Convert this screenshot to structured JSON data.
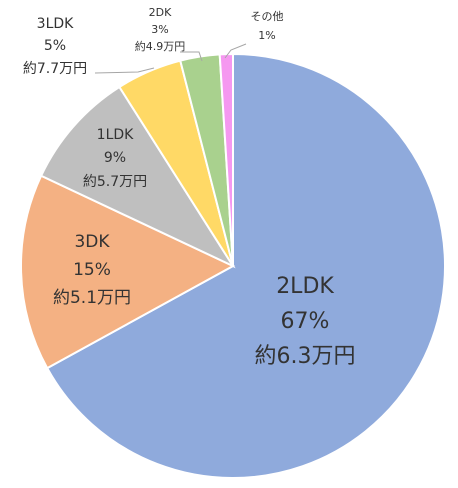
{
  "chart_data": {
    "type": "pie",
    "slices": [
      {
        "category": "2LDK",
        "percent": 67,
        "price": "約6.3万円",
        "color": "#8faadc"
      },
      {
        "category": "3DK",
        "percent": 15,
        "price": "約5.1万円",
        "color": "#f4b183"
      },
      {
        "category": "1LDK",
        "percent": 9,
        "price": "約5.7万円",
        "color": "#bfbfbf"
      },
      {
        "category": "3LDK",
        "percent": 5,
        "price": "約7.7万円",
        "color": "#ffd966"
      },
      {
        "category": "2DK",
        "percent": 3,
        "price": "約4.9万円",
        "color": "#a9d18e"
      },
      {
        "category": "その他",
        "percent": 1,
        "price": "",
        "color": "#f598f0"
      }
    ],
    "percent_labels": [
      "67%",
      "15%",
      "9%",
      "5%",
      "3%",
      "1%"
    ]
  }
}
